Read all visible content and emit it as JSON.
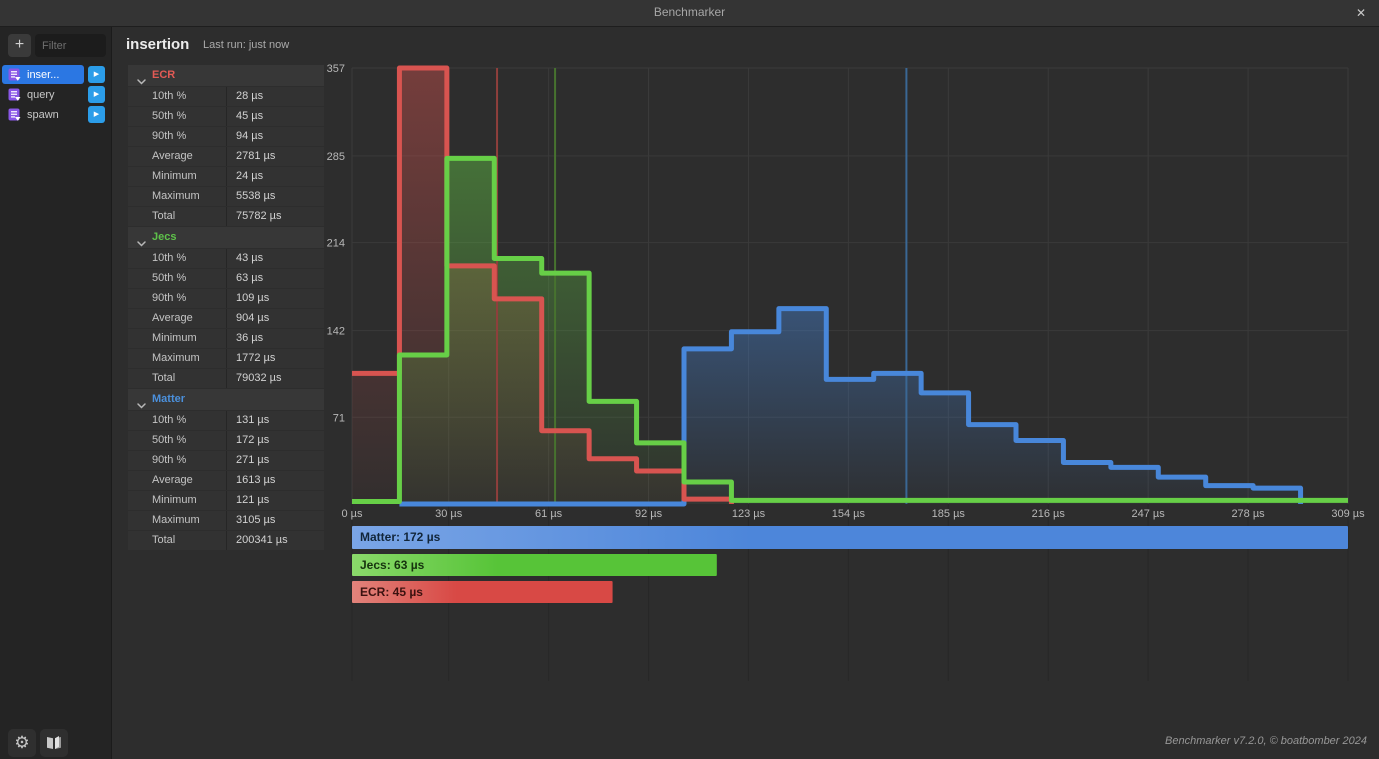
{
  "titlebar": {
    "title": "Benchmarker",
    "close_icon": "✕"
  },
  "sidebar": {
    "add_button_label": "+",
    "filter_placeholder": "Filter",
    "play_icon": "▶",
    "items": [
      {
        "label": "inser...",
        "selected": true
      },
      {
        "label": "query",
        "selected": false
      },
      {
        "label": "spawn",
        "selected": false
      }
    ]
  },
  "header": {
    "title": "insertion",
    "last_run": "Last run: just now"
  },
  "stats": {
    "sections": [
      {
        "name": "ECR",
        "color": "#e25a55",
        "rows": [
          [
            "10th %",
            "28 µs"
          ],
          [
            "50th %",
            "45 µs"
          ],
          [
            "90th %",
            "94 µs"
          ],
          [
            "Average",
            "2781 µs"
          ],
          [
            "Minimum",
            "24 µs"
          ],
          [
            "Maximum",
            "5538 µs"
          ],
          [
            "Total",
            "75782 µs"
          ]
        ]
      },
      {
        "name": "Jecs",
        "color": "#5ec24a",
        "rows": [
          [
            "10th %",
            "43 µs"
          ],
          [
            "50th %",
            "63 µs"
          ],
          [
            "90th %",
            "109 µs"
          ],
          [
            "Average",
            "904 µs"
          ],
          [
            "Minimum",
            "36 µs"
          ],
          [
            "Maximum",
            "1772 µs"
          ],
          [
            "Total",
            "79032 µs"
          ]
        ]
      },
      {
        "name": "Matter",
        "color": "#4b90dc",
        "rows": [
          [
            "10th %",
            "131 µs"
          ],
          [
            "50th %",
            "172 µs"
          ],
          [
            "90th %",
            "271 µs"
          ],
          [
            "Average",
            "1613 µs"
          ],
          [
            "Minimum",
            "121 µs"
          ],
          [
            "Maximum",
            "3105 µs"
          ],
          [
            "Total",
            "200341 µs"
          ]
        ]
      }
    ]
  },
  "chart_data": {
    "type": "step-histogram",
    "xlim": [
      0,
      309
    ],
    "ylim": [
      0,
      357
    ],
    "bins": 21,
    "x_tick_values": [
      0,
      30,
      61,
      92,
      123,
      154,
      185,
      216,
      247,
      278,
      309
    ],
    "x_tick_labels": [
      "0 µs",
      "30 µs",
      "61 µs",
      "92 µs",
      "123 µs",
      "154 µs",
      "185 µs",
      "216 µs",
      "247 µs",
      "278 µs",
      "309 µs"
    ],
    "y_ticks": [
      357,
      285,
      214,
      142,
      71
    ],
    "series": [
      {
        "name": "Matter",
        "color": "#4887da",
        "median_us": 172,
        "median_line_color": "#3a6794",
        "draw_from_bin": 1,
        "values": [
          0,
          0,
          0,
          0,
          0,
          0,
          0,
          127,
          141,
          160,
          102,
          107,
          91,
          65,
          52,
          34,
          30,
          22,
          15,
          13,
          0
        ]
      },
      {
        "name": "ECR",
        "color": "#d85450",
        "median_us": 45,
        "median_line_color": "#8f3f3c",
        "draw_from_bin": 0,
        "values": [
          107,
          357,
          195,
          168,
          60,
          37,
          27,
          4,
          0,
          0,
          0,
          0,
          0,
          0,
          0,
          0,
          0,
          0,
          0,
          0,
          0
        ]
      },
      {
        "name": "Jecs",
        "color": "#67cf47",
        "median_us": 63,
        "median_line_color": "#47722f",
        "draw_from_bin": 0,
        "values": [
          2,
          122,
          283,
          201,
          189,
          84,
          50,
          18,
          3,
          3,
          3,
          3,
          3,
          3,
          3,
          3,
          3,
          3,
          3,
          3,
          3
        ]
      }
    ],
    "legend": [
      {
        "label": "Matter: 172 µs",
        "value_us": 172,
        "bar_color_light": "#7aa5e6",
        "bar_color": "#4d86da",
        "text_color": "#12263a"
      },
      {
        "label": "Jecs: 63 µs",
        "value_us": 63,
        "bar_color_light": "#8ad96a",
        "bar_color": "#57c438",
        "text_color": "#16330e"
      },
      {
        "label": "ECR: 45 µs",
        "value_us": 45,
        "bar_color_light": "#e2837b",
        "bar_color": "#d84945",
        "text_color": "#3b1210"
      }
    ],
    "legend_max_us": 172
  },
  "footer": {
    "credit": "Benchmarker v7.2.0, © boatbomber 2024"
  }
}
